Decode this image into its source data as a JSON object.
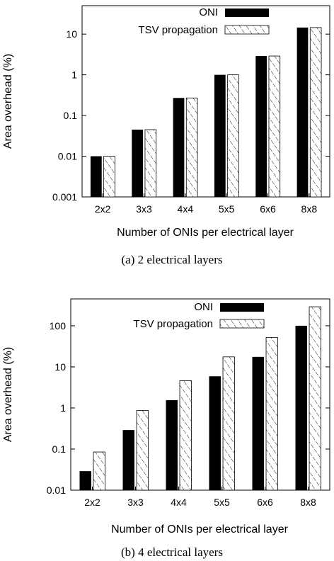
{
  "chart_data": [
    {
      "type": "bar",
      "caption": "(a) 2 electrical layers",
      "xlabel": "Number of ONIs per electrical layer",
      "ylabel": "Area overhead (%)",
      "yscale": "log",
      "ylim": [
        0.001,
        50
      ],
      "yticks": [
        0.001,
        0.01,
        0.1,
        1,
        10
      ],
      "ytick_labels": [
        "0.001",
        "0.01",
        "0.1",
        "1",
        "10"
      ],
      "categories": [
        "2x2",
        "3x3",
        "4x4",
        "5x5",
        "6x6",
        "8x8"
      ],
      "legend_position": "top-right",
      "series": [
        {
          "name": "ONI",
          "pattern": "solid",
          "color": "#000000",
          "values": [
            0.01,
            0.045,
            0.27,
            1.0,
            2.9,
            14.5
          ]
        },
        {
          "name": "TSV propagation",
          "pattern": "hatched",
          "color": "#000000",
          "values": [
            0.01,
            0.045,
            0.27,
            1.0,
            2.9,
            14.5
          ]
        }
      ]
    },
    {
      "type": "bar",
      "caption": "(b) 4 electrical layers",
      "xlabel": "Number of ONIs per electrical layer",
      "ylabel": "Area overhead (%)",
      "yscale": "log",
      "ylim": [
        0.01,
        450
      ],
      "yticks": [
        0.01,
        0.1,
        1,
        10,
        100
      ],
      "ytick_labels": [
        "0.01",
        "0.1",
        "1",
        "10",
        "100"
      ],
      "categories": [
        "2x2",
        "3x3",
        "4x4",
        "5x5",
        "6x6",
        "8x8"
      ],
      "legend_position": "top-right",
      "series": [
        {
          "name": "ONI",
          "pattern": "solid",
          "color": "#000000",
          "values": [
            0.029,
            0.29,
            1.55,
            5.9,
            17.5,
            100
          ]
        },
        {
          "name": "TSV propagation",
          "pattern": "hatched",
          "color": "#000000",
          "values": [
            0.085,
            0.87,
            4.6,
            17.5,
            52,
            290
          ]
        }
      ]
    }
  ]
}
